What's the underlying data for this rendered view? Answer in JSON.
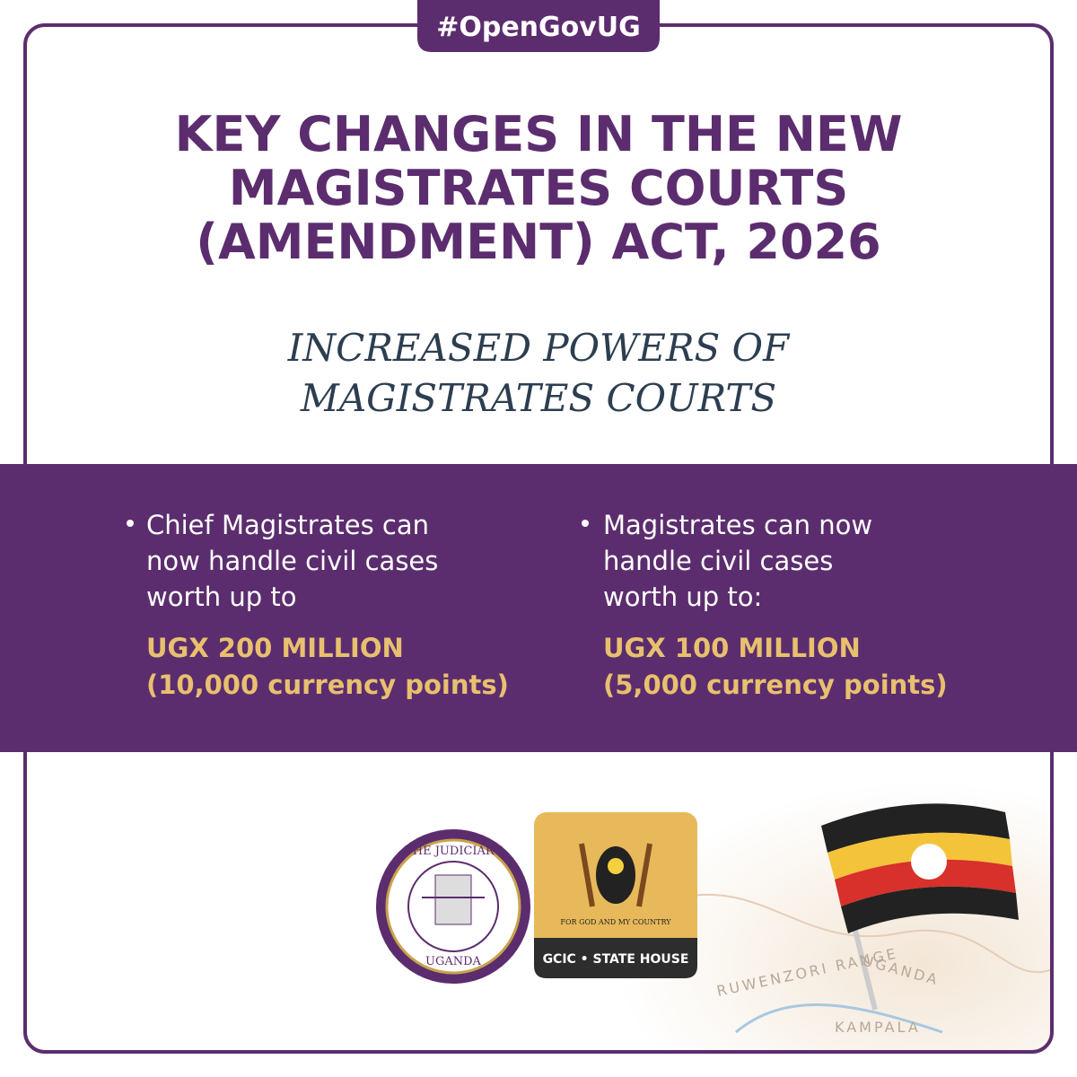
{
  "tag": "#OpenGovUG",
  "title": {
    "lines": [
      "KEY CHANGES IN THE NEW",
      "MAGISTRATES COURTS",
      "(AMENDMENT) ACT, 2026"
    ]
  },
  "subtitle": {
    "lines": [
      "INCREASED POWERS OF",
      "MAGISTRATES COURTS"
    ]
  },
  "bullets": [
    {
      "text": [
        "Chief Magistrates can",
        "now handle civil cases",
        "worth up to"
      ],
      "amount": [
        "UGX 200 MILLION",
        "(10,000 currency points)"
      ]
    },
    {
      "text": [
        "Magistrates can now",
        "handle civil cases",
        "worth up to:"
      ],
      "amount": [
        "UGX 100 MILLION",
        "(5,000 currency points)"
      ]
    }
  ],
  "logos": {
    "judiciary": {
      "top": "THE JUDICIARY",
      "bottom": "UGANDA"
    },
    "state_house": {
      "motto": "FOR GOD AND MY COUNTRY",
      "label": "GCIC • STATE HOUSE"
    }
  },
  "map": {
    "labels": [
      "UGANDA",
      "RUWENZORI RANGE",
      "KAMPALA"
    ]
  }
}
